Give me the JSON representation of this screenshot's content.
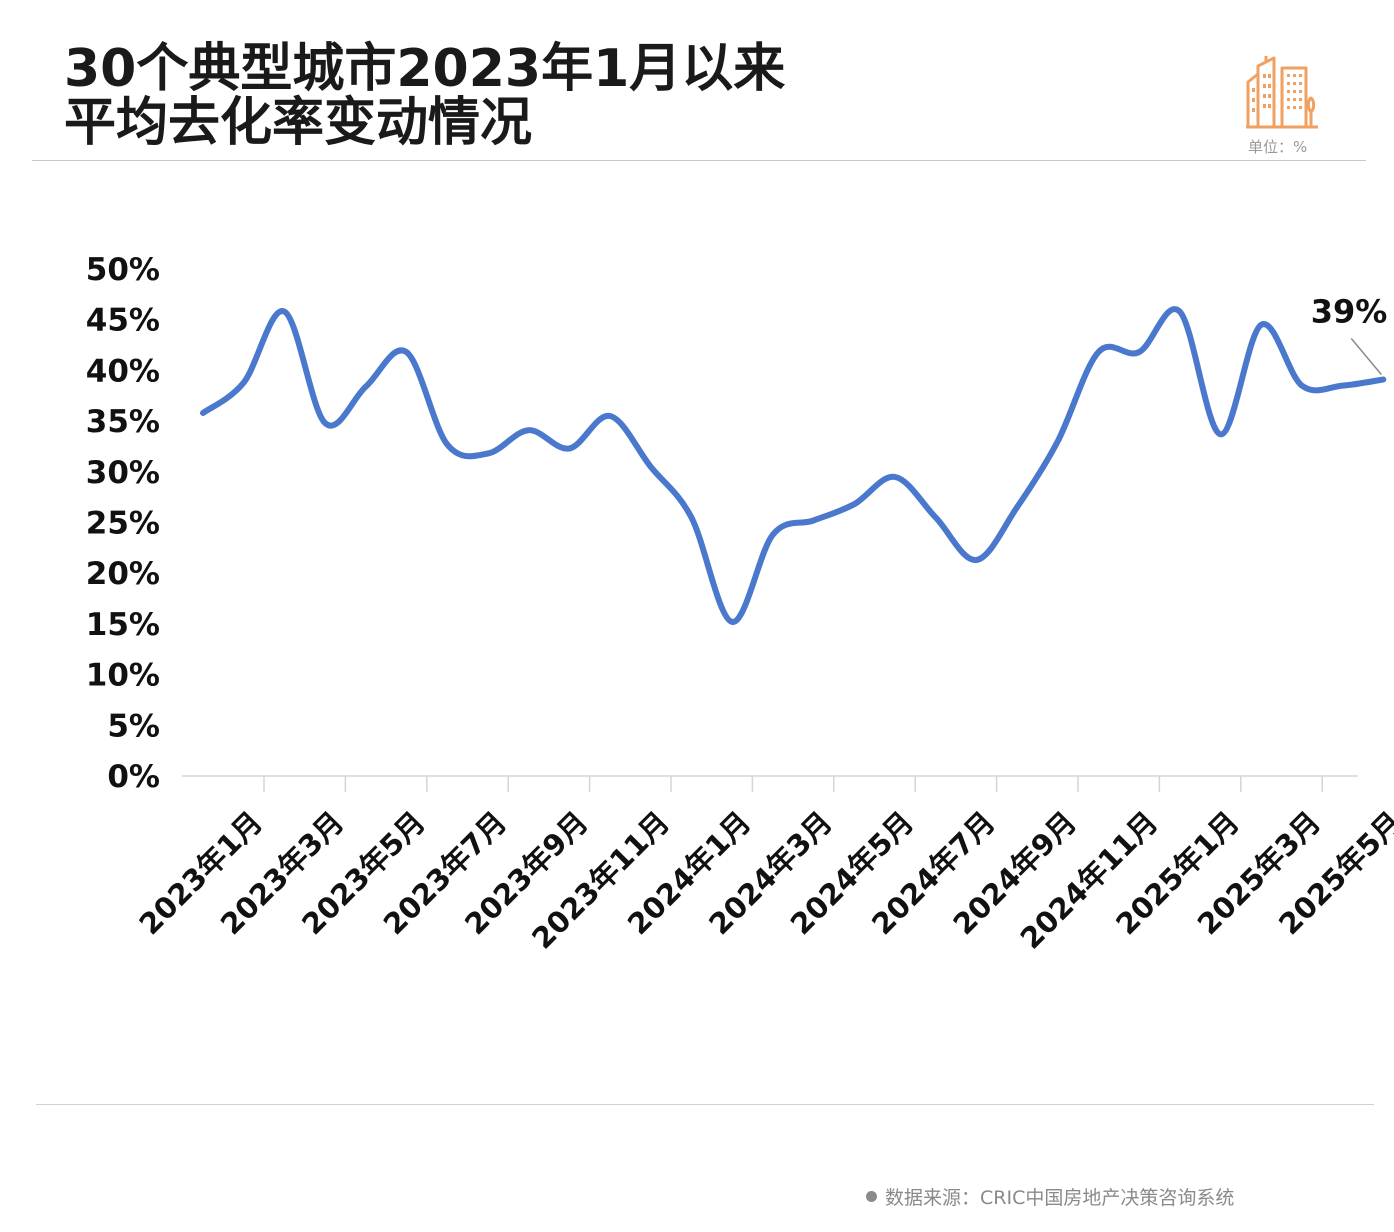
{
  "header": {
    "title_line1": "30个典型城市2023年1月以来",
    "title_line2": "平均去化率变动情况",
    "unit": "单位：%"
  },
  "footer": {
    "source": "数据来源：CRIC中国房地产决策咨询系统"
  },
  "colors": {
    "line": "#4a78cc",
    "icon": "#f0a060"
  },
  "icons": {
    "header_icon": "building-icon",
    "source_bullet": "dot-icon"
  },
  "chart_data": {
    "type": "line",
    "title": "30个典型城市2023年1月以来平均去化率变动情况",
    "unit": "%",
    "ylim": [
      0,
      50
    ],
    "yticks": [
      "0%",
      "5%",
      "10%",
      "15%",
      "20%",
      "25%",
      "30%",
      "35%",
      "40%",
      "45%",
      "50%"
    ],
    "xtick_labels": [
      "2023年1月",
      "2023年3月",
      "2023年5月",
      "2023年7月",
      "2023年9月",
      "2023年11月",
      "2024年1月",
      "2024年3月",
      "2024年5月",
      "2024年7月",
      "2024年9月",
      "2024年11月",
      "2025年1月",
      "2025年3月",
      "2025年5月"
    ],
    "grid": false,
    "x": [
      "2023年1月",
      "2023年2月",
      "2023年3月",
      "2023年4月",
      "2023年5月",
      "2023年6月",
      "2023年7月",
      "2023年8月",
      "2023年9月",
      "2023年10月",
      "2023年11月",
      "2023年12月",
      "2024年1月",
      "2024年2月",
      "2024年3月",
      "2024年4月",
      "2024年5月",
      "2024年6月",
      "2024年7月",
      "2024年8月",
      "2024年9月",
      "2024年10月",
      "2024年11月",
      "2024年12月",
      "2025年1月",
      "2025年2月",
      "2025年3月",
      "2025年4月",
      "2025年5月",
      "2025年6月"
    ],
    "series": [
      {
        "values": [
          35.8,
          38.8,
          45.8,
          34.8,
          38.4,
          41.8,
          32.7,
          31.8,
          34.1,
          32.3,
          35.5,
          30.5,
          25.5,
          15.2,
          23.8,
          25.2,
          26.8,
          29.5,
          25.5,
          21.3,
          26.5,
          33.0,
          41.8,
          41.8,
          45.8,
          33.7,
          44.5,
          38.5,
          38.5,
          39.1
        ]
      }
    ],
    "annotation": {
      "text": "39%",
      "point": "2025年6月",
      "value": 39
    }
  }
}
